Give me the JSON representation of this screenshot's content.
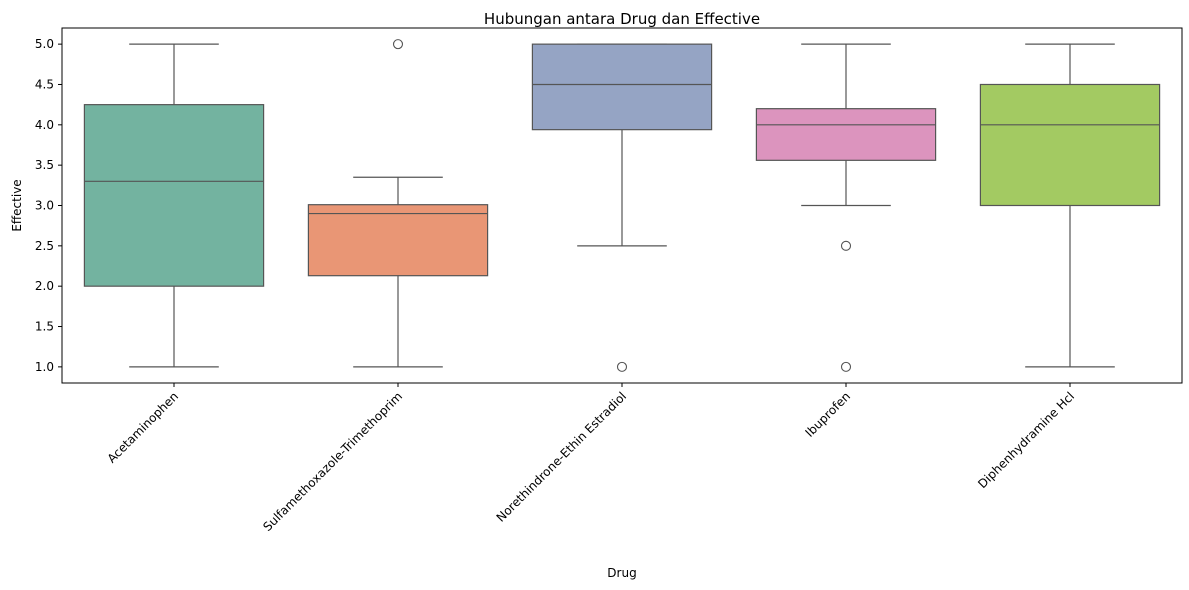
{
  "chart_data": {
    "type": "box",
    "title": "Hubungan antara Drug dan Effective",
    "xlabel": "Drug",
    "ylabel": "Effective",
    "ylim": [
      0.8,
      5.2
    ],
    "yticks": [
      1.0,
      1.5,
      2.0,
      2.5,
      3.0,
      3.5,
      4.0,
      4.5,
      5.0
    ],
    "ytick_labels": [
      "1.0",
      "1.5",
      "2.0",
      "2.5",
      "3.0",
      "3.5",
      "4.0",
      "4.5",
      "5.0"
    ],
    "categories": [
      "Acetaminophen",
      "Sulfamethoxazole-Trimethoprim",
      "Norethindrone-Ethin Estradiol",
      "Ibuprofen",
      "Diphenhydramine Hcl"
    ],
    "boxes": [
      {
        "whisker_low": 1.0,
        "q1": 2.0,
        "median": 3.3,
        "q3": 4.25,
        "whisker_high": 5.0,
        "outliers": [],
        "color": "#73b3a0"
      },
      {
        "whisker_low": 1.0,
        "q1": 2.13,
        "median": 2.9,
        "q3": 3.01,
        "whisker_high": 3.35,
        "outliers": [
          5.0
        ],
        "color": "#e99675"
      },
      {
        "whisker_low": 2.5,
        "q1": 3.94,
        "median": 4.5,
        "q3": 5.0,
        "whisker_high": 5.0,
        "outliers": [
          1.0
        ],
        "color": "#95a4c4"
      },
      {
        "whisker_low": 3.0,
        "q1": 3.56,
        "median": 4.0,
        "q3": 4.2,
        "whisker_high": 5.0,
        "outliers": [
          2.5,
          1.0
        ],
        "color": "#dc94be"
      },
      {
        "whisker_low": 1.0,
        "q1": 3.0,
        "median": 4.0,
        "q3": 4.5,
        "whisker_high": 5.0,
        "outliers": [],
        "color": "#a3ca62"
      }
    ],
    "line_color": "#555555",
    "grid": false,
    "legend": "none"
  }
}
